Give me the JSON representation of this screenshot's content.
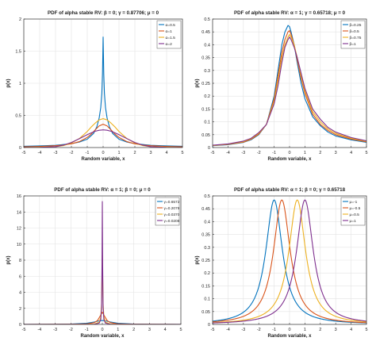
{
  "chart_data": [
    {
      "type": "line",
      "title": "PDF of alpha stable RV:  β = 0;  γ = 0.87706;  μ = 0",
      "xlabel": "Random variable, x",
      "ylabel": "p(x)",
      "xlim": [
        -5,
        5
      ],
      "ylim": [
        0,
        2
      ],
      "xticks": [
        "-5",
        "-4",
        "-3",
        "-2",
        "-1",
        "0",
        "1",
        "2",
        "3",
        "4",
        "5"
      ],
      "yticks": [
        "0",
        "0.5",
        "1",
        "1.5",
        "2"
      ],
      "grid": true,
      "legend": "top-right",
      "series": [
        {
          "name": "α=0.5",
          "color": "#0072BD",
          "x": [
            -5,
            -4,
            -3,
            -2,
            -1.5,
            -1,
            -0.6,
            -0.4,
            -0.25,
            -0.15,
            -0.08,
            -0.04,
            0,
            0.04,
            0.08,
            0.15,
            0.25,
            0.4,
            0.6,
            1,
            1.5,
            2,
            3,
            4,
            5
          ],
          "y": [
            0.02,
            0.025,
            0.035,
            0.06,
            0.085,
            0.13,
            0.22,
            0.32,
            0.46,
            0.62,
            0.85,
            1.15,
            1.72,
            1.15,
            0.85,
            0.62,
            0.46,
            0.32,
            0.22,
            0.13,
            0.085,
            0.06,
            0.035,
            0.025,
            0.02
          ]
        },
        {
          "name": "α=1",
          "color": "#D95319",
          "x": [
            -5,
            -4,
            -3,
            -2.5,
            -2,
            -1.5,
            -1,
            -0.75,
            -0.5,
            -0.25,
            0,
            0.25,
            0.5,
            0.75,
            1,
            1.5,
            2,
            2.5,
            3,
            4,
            5
          ],
          "y": [
            0.011,
            0.017,
            0.028,
            0.039,
            0.058,
            0.092,
            0.157,
            0.209,
            0.275,
            0.336,
            0.363,
            0.336,
            0.275,
            0.209,
            0.157,
            0.092,
            0.058,
            0.039,
            0.028,
            0.017,
            0.011
          ]
        },
        {
          "name": "α=1.5",
          "color": "#EDB120",
          "x": [
            -5,
            -4,
            -3,
            -2.5,
            -2,
            -1.5,
            -1,
            -0.75,
            -0.5,
            -0.25,
            0,
            0.25,
            0.5,
            0.75,
            1,
            1.5,
            2,
            2.5,
            3,
            4,
            5
          ],
          "y": [
            0.0,
            0.005,
            0.013,
            0.03,
            0.07,
            0.14,
            0.25,
            0.32,
            0.38,
            0.43,
            0.45,
            0.43,
            0.38,
            0.32,
            0.25,
            0.14,
            0.07,
            0.03,
            0.013,
            0.005,
            0.0
          ]
        },
        {
          "name": "α=2",
          "color": "#7E2F8E",
          "x": [
            -5,
            -4,
            -3,
            -2.5,
            -2,
            -1.5,
            -1,
            -0.75,
            -0.5,
            -0.25,
            0,
            0.25,
            0.5,
            0.75,
            1,
            1.5,
            2,
            2.5,
            3,
            4,
            5
          ],
          "y": [
            0.0,
            0.002,
            0.013,
            0.037,
            0.078,
            0.138,
            0.2,
            0.228,
            0.253,
            0.269,
            0.275,
            0.269,
            0.253,
            0.228,
            0.2,
            0.138,
            0.078,
            0.037,
            0.013,
            0.002,
            0.0
          ]
        }
      ]
    },
    {
      "type": "line",
      "title": "PDF of alpha stable RV:  α = 1;  γ = 0.65718;  μ = 0",
      "xlabel": "Random variable, x",
      "ylabel": "p(x)",
      "xlim": [
        -5,
        5
      ],
      "ylim": [
        0,
        0.5
      ],
      "xticks": [
        "-5",
        "-4",
        "-3",
        "-2",
        "-1",
        "0",
        "1",
        "2",
        "3",
        "4",
        "5"
      ],
      "yticks": [
        "0",
        "0.05",
        "0.1",
        "0.15",
        "0.2",
        "0.25",
        "0.3",
        "0.35",
        "0.4",
        "0.45",
        "0.5"
      ],
      "grid": true,
      "legend": "top-right",
      "series": [
        {
          "name": "β=0.25",
          "color": "#0072BD",
          "x": [
            -5,
            -4,
            -3,
            -2.5,
            -2,
            -1.5,
            -1,
            -0.75,
            -0.5,
            -0.3,
            -0.1,
            0,
            0.1,
            0.3,
            0.5,
            0.75,
            1,
            1.5,
            2,
            2.5,
            3,
            4,
            5
          ],
          "y": [
            0.007,
            0.011,
            0.02,
            0.03,
            0.05,
            0.09,
            0.2,
            0.3,
            0.4,
            0.45,
            0.475,
            0.47,
            0.45,
            0.4,
            0.33,
            0.25,
            0.19,
            0.12,
            0.085,
            0.06,
            0.045,
            0.03,
            0.02
          ]
        },
        {
          "name": "β=0.5",
          "color": "#D95319",
          "x": [
            -5,
            -4,
            -3,
            -2.5,
            -2,
            -1.5,
            -1,
            -0.75,
            -0.5,
            -0.3,
            -0.1,
            0,
            0.1,
            0.3,
            0.5,
            0.75,
            1,
            1.5,
            2,
            2.5,
            3,
            4,
            5
          ],
          "y": [
            0.008,
            0.012,
            0.021,
            0.032,
            0.052,
            0.09,
            0.19,
            0.28,
            0.37,
            0.42,
            0.45,
            0.455,
            0.44,
            0.4,
            0.34,
            0.27,
            0.21,
            0.13,
            0.09,
            0.066,
            0.05,
            0.033,
            0.022
          ]
        },
        {
          "name": "β=0.75",
          "color": "#EDB120",
          "x": [
            -5,
            -4,
            -3,
            -2.5,
            -2,
            -1.5,
            -1,
            -0.75,
            -0.5,
            -0.3,
            -0.1,
            0,
            0.1,
            0.3,
            0.5,
            0.75,
            1,
            1.5,
            2,
            2.5,
            3,
            4,
            5
          ],
          "y": [
            0.008,
            0.013,
            0.023,
            0.034,
            0.055,
            0.09,
            0.18,
            0.26,
            0.35,
            0.4,
            0.43,
            0.44,
            0.43,
            0.4,
            0.35,
            0.28,
            0.22,
            0.14,
            0.1,
            0.072,
            0.055,
            0.036,
            0.024
          ]
        },
        {
          "name": "β=1",
          "color": "#7E2F8E",
          "x": [
            -5,
            -4,
            -3,
            -2.5,
            -2,
            -1.5,
            -1,
            -0.75,
            -0.5,
            -0.3,
            -0.1,
            0,
            0.1,
            0.3,
            0.5,
            0.75,
            1,
            1.5,
            2,
            2.5,
            3,
            4,
            5
          ],
          "y": [
            0.009,
            0.014,
            0.025,
            0.036,
            0.058,
            0.09,
            0.17,
            0.24,
            0.33,
            0.39,
            0.42,
            0.43,
            0.42,
            0.39,
            0.35,
            0.29,
            0.23,
            0.15,
            0.11,
            0.078,
            0.06,
            0.039,
            0.026
          ]
        }
      ]
    },
    {
      "type": "line",
      "title": "PDF of alpha stable RV:  α = 1;  β = 0;  μ = 0",
      "xlabel": "Random variable, x",
      "ylabel": "p(x)",
      "xlim": [
        -5,
        5
      ],
      "ylim": [
        0,
        16
      ],
      "xticks": [
        "-5",
        "-4",
        "-3",
        "-2",
        "-1",
        "0",
        "1",
        "2",
        "3",
        "4",
        "5"
      ],
      "yticks": [
        "0",
        "2",
        "4",
        "6",
        "8",
        "10",
        "12",
        "14",
        "16"
      ],
      "grid": true,
      "legend": "top-right",
      "series": [
        {
          "name": "γ=0.6572",
          "color": "#0072BD",
          "x": [
            -5,
            -3,
            -2,
            -1,
            -0.5,
            -0.25,
            0,
            0.25,
            0.5,
            1,
            2,
            3,
            5
          ],
          "y": [
            0.008,
            0.022,
            0.047,
            0.146,
            0.306,
            0.42,
            0.484,
            0.42,
            0.306,
            0.146,
            0.047,
            0.022,
            0.008
          ]
        },
        {
          "name": "γ=0.2078",
          "color": "#D95319",
          "x": [
            -5,
            -2,
            -1,
            -0.5,
            -0.3,
            -0.15,
            0,
            0.15,
            0.3,
            0.5,
            1,
            2,
            5
          ],
          "y": [
            0.003,
            0.016,
            0.063,
            0.226,
            0.5,
            1.0,
            1.53,
            1.0,
            0.5,
            0.226,
            0.063,
            0.016,
            0.003
          ]
        },
        {
          "name": "γ=0.0370",
          "color": "#EDB120",
          "x": [
            -5,
            -2,
            -1,
            -0.5,
            -0.2,
            -0.1,
            -0.05,
            0,
            0.05,
            0.1,
            0.2,
            0.5,
            1,
            2,
            5
          ],
          "y": [
            0.0,
            0.003,
            0.012,
            0.047,
            0.28,
            0.9,
            2.6,
            8.6,
            2.6,
            0.9,
            0.28,
            0.047,
            0.012,
            0.003,
            0.0
          ]
        },
        {
          "name": "γ=0.0208",
          "color": "#7E2F8E",
          "x": [
            -5,
            -2,
            -1,
            -0.5,
            -0.2,
            -0.1,
            -0.05,
            -0.02,
            0,
            0.02,
            0.05,
            0.1,
            0.2,
            0.5,
            1,
            2,
            5
          ],
          "y": [
            0.0,
            0.002,
            0.007,
            0.026,
            0.16,
            0.6,
            2.1,
            7.5,
            15.3,
            7.5,
            2.1,
            0.6,
            0.16,
            0.026,
            0.007,
            0.002,
            0.0
          ]
        }
      ]
    },
    {
      "type": "line",
      "title": "PDF of alpha stable RV:  α = 1;  β = 0;  γ = 0.65718",
      "xlabel": "Random variable, x",
      "ylabel": "p(x)",
      "xlim": [
        -5,
        5
      ],
      "ylim": [
        0,
        0.5
      ],
      "xticks": [
        "-5",
        "-4",
        "-3",
        "-2",
        "-1",
        "0",
        "1",
        "2",
        "3",
        "4",
        "5"
      ],
      "yticks": [
        "0",
        "0.05",
        "0.1",
        "0.15",
        "0.2",
        "0.25",
        "0.3",
        "0.35",
        "0.4",
        "0.45",
        "0.5"
      ],
      "grid": true,
      "legend": "top-right",
      "series": [
        {
          "name": "μ=-1",
          "color": "#0072BD",
          "mu": -1,
          "gamma": 0.65718
        },
        {
          "name": "μ=-0.5",
          "color": "#D95319",
          "mu": -0.5,
          "gamma": 0.65718
        },
        {
          "name": "μ=0.5",
          "color": "#EDB120",
          "mu": 0.5,
          "gamma": 0.65718
        },
        {
          "name": "μ=1",
          "color": "#7E2F8E",
          "mu": 1,
          "gamma": 0.65718
        }
      ]
    }
  ]
}
